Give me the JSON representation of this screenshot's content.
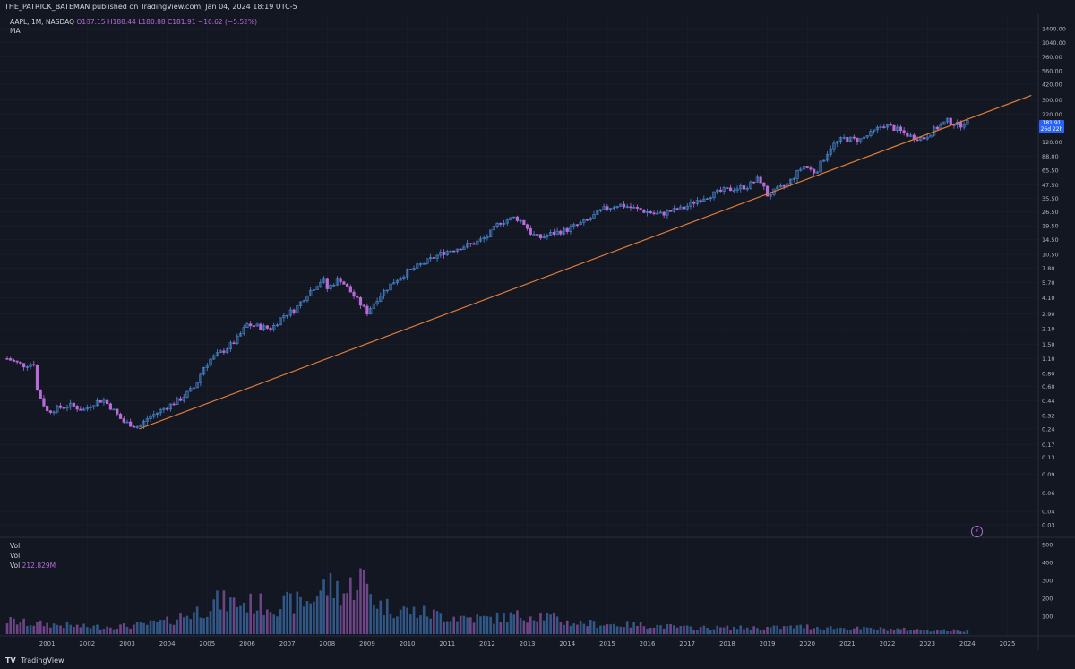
{
  "header": {
    "published": "THE_PATRICK_BATEMAN published on TradingView.com, Jan 04, 2024 18:19 UTC-5"
  },
  "legend": {
    "symbol": "AAPL, 1M, NASDAQ",
    "open": "O187.15",
    "high": "H188.44",
    "low": "L180.88",
    "close": "C181.91",
    "change": "−10.62 (−5.52%)",
    "ma": "MA"
  },
  "price_tag": {
    "price": "181.91",
    "countdown": "26d 22h"
  },
  "volume_legend": {
    "line1": "Vol",
    "line2": "Vol",
    "line3_label": "Vol",
    "line3_value": "212.829M"
  },
  "footer": {
    "logo": "TV",
    "brand": "TradingView"
  },
  "colors": {
    "background": "#131722",
    "up": "#4a8cd9",
    "down": "#b86bd9",
    "trendline": "#e07b39",
    "grid": "#1e2230"
  },
  "chart_data": {
    "type": "candlestick",
    "symbol": "AAPL",
    "interval": "1M",
    "exchange": "NASDAQ",
    "y_scale": "log",
    "price_ticks": [
      "1400.00",
      "1040.00",
      "760.00",
      "560.00",
      "420.00",
      "300.00",
      "220.00",
      "160.00",
      "120.00",
      "88.00",
      "65.50",
      "47.50",
      "35.50",
      "26.50",
      "19.50",
      "14.50",
      "10.50",
      "7.80",
      "5.70",
      "4.10",
      "2.90",
      "2.10",
      "1.50",
      "1.10",
      "0.80",
      "0.60",
      "0.44",
      "0.32",
      "0.24",
      "0.17",
      "0.13",
      "0.09",
      "0.06",
      "0.04",
      "0.03"
    ],
    "volume_ticks": [
      "500",
      "400",
      "300",
      "200",
      "100"
    ],
    "x_ticks": [
      "2001",
      "2002",
      "2003",
      "2004",
      "2005",
      "2006",
      "2007",
      "2008",
      "2009",
      "2010",
      "2011",
      "2012",
      "2013",
      "2014",
      "2015",
      "2016",
      "2017",
      "2018",
      "2019",
      "2020",
      "2021",
      "2022",
      "2023",
      "2024",
      "2025"
    ],
    "price_path": [
      [
        2000.0,
        1.1
      ],
      [
        2000.4,
        0.95
      ],
      [
        2000.7,
        1.0
      ],
      [
        2000.75,
        0.55
      ],
      [
        2001.0,
        0.35
      ],
      [
        2001.3,
        0.38
      ],
      [
        2001.6,
        0.4
      ],
      [
        2001.9,
        0.36
      ],
      [
        2002.2,
        0.43
      ],
      [
        2002.4,
        0.45
      ],
      [
        2002.6,
        0.38
      ],
      [
        2002.9,
        0.28
      ],
      [
        2003.3,
        0.25
      ],
      [
        2003.5,
        0.3
      ],
      [
        2003.9,
        0.37
      ],
      [
        2004.3,
        0.45
      ],
      [
        2004.7,
        0.6
      ],
      [
        2004.9,
        0.9
      ],
      [
        2005.1,
        1.1
      ],
      [
        2005.4,
        1.3
      ],
      [
        2005.7,
        1.6
      ],
      [
        2006.0,
        2.3
      ],
      [
        2006.3,
        2.2
      ],
      [
        2006.6,
        2.1
      ],
      [
        2006.9,
        2.8
      ],
      [
        2007.2,
        3.2
      ],
      [
        2007.5,
        4.5
      ],
      [
        2007.9,
        6.2
      ],
      [
        2008.0,
        5.0
      ],
      [
        2008.3,
        6.3
      ],
      [
        2008.6,
        4.6
      ],
      [
        2008.8,
        3.7
      ],
      [
        2009.0,
        3.0
      ],
      [
        2009.3,
        4.3
      ],
      [
        2009.7,
        6.0
      ],
      [
        2010.0,
        7.2
      ],
      [
        2010.5,
        9.1
      ],
      [
        2010.9,
        11.0
      ],
      [
        2011.3,
        12.2
      ],
      [
        2011.7,
        13.5
      ],
      [
        2012.0,
        15.5
      ],
      [
        2012.3,
        21.0
      ],
      [
        2012.7,
        23.5
      ],
      [
        2012.9,
        21.0
      ],
      [
        2013.1,
        16.5
      ],
      [
        2013.3,
        15.0
      ],
      [
        2013.6,
        16.5
      ],
      [
        2014.0,
        18.0
      ],
      [
        2014.5,
        22.0
      ],
      [
        2014.9,
        28.0
      ],
      [
        2015.3,
        31.0
      ],
      [
        2015.6,
        29.0
      ],
      [
        2015.9,
        27.0
      ],
      [
        2016.3,
        25.0
      ],
      [
        2016.6,
        27.0
      ],
      [
        2016.9,
        28.5
      ],
      [
        2017.3,
        35.0
      ],
      [
        2017.9,
        42.0
      ],
      [
        2018.5,
        46.0
      ],
      [
        2018.8,
        55.0
      ],
      [
        2019.0,
        38.0
      ],
      [
        2019.5,
        48.0
      ],
      [
        2019.9,
        72.0
      ],
      [
        2020.2,
        62.0
      ],
      [
        2020.6,
        110.0
      ],
      [
        2020.9,
        130.0
      ],
      [
        2021.3,
        125.0
      ],
      [
        2021.6,
        145.0
      ],
      [
        2021.9,
        175.0
      ],
      [
        2022.2,
        160.0
      ],
      [
        2022.6,
        135.0
      ],
      [
        2022.9,
        130.0
      ],
      [
        2023.2,
        160.0
      ],
      [
        2023.5,
        190.0
      ],
      [
        2023.8,
        172.0
      ],
      [
        2023.95,
        188.0
      ],
      [
        2024.0,
        181.91
      ]
    ],
    "trendline": {
      "from": [
        2003.3,
        0.24
      ],
      "to": [
        2025.6,
        330.0
      ]
    },
    "volume_level": [
      [
        2000.0,
        75
      ],
      [
        2000.5,
        60
      ],
      [
        2001.0,
        55
      ],
      [
        2002.0,
        40
      ],
      [
        2003.0,
        45
      ],
      [
        2003.5,
        55
      ],
      [
        2004.0,
        70
      ],
      [
        2004.9,
        140
      ],
      [
        2005.2,
        180
      ],
      [
        2006.0,
        170
      ],
      [
        2006.6,
        160
      ],
      [
        2007.5,
        180
      ],
      [
        2008.0,
        270
      ],
      [
        2008.5,
        230
      ],
      [
        2008.8,
        330
      ],
      [
        2009.3,
        160
      ],
      [
        2010.0,
        130
      ],
      [
        2011.0,
        100
      ],
      [
        2012.0,
        85
      ],
      [
        2012.7,
        100
      ],
      [
        2013.3,
        110
      ],
      [
        2014.0,
        65
      ],
      [
        2015.0,
        55
      ],
      [
        2016.0,
        50
      ],
      [
        2017.0,
        35
      ],
      [
        2018.0,
        35
      ],
      [
        2019.0,
        35
      ],
      [
        2020.0,
        42
      ],
      [
        2021.0,
        32
      ],
      [
        2022.0,
        28
      ],
      [
        2023.0,
        22
      ],
      [
        2024.0,
        18
      ]
    ]
  }
}
